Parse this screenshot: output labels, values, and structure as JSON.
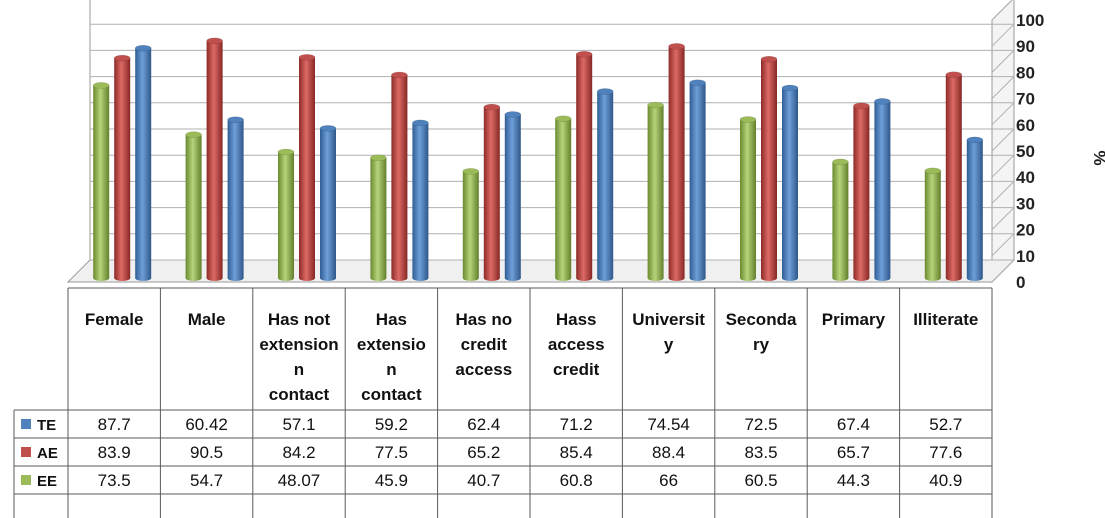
{
  "chart_data": {
    "type": "bar",
    "categories": [
      "Female",
      "Male",
      "Has not extension contact",
      "Has extension contact",
      "Has no credit access",
      "Hass access credit",
      "University",
      "Secondary",
      "Primary",
      "Illiterate"
    ],
    "category_lines": [
      [
        "Female"
      ],
      [
        "Male"
      ],
      [
        "Has not",
        "extension",
        "n",
        "contact"
      ],
      [
        "Has",
        "extensio",
        "n",
        "contact"
      ],
      [
        "Has no",
        "credit",
        "access"
      ],
      [
        "Hass",
        "access",
        "credit"
      ],
      [
        "Universit",
        "y"
      ],
      [
        "Seconda",
        "ry"
      ],
      [
        "Primary"
      ],
      [
        "Illiterate"
      ]
    ],
    "series": [
      {
        "name": "TE",
        "color": "#4F81BD",
        "values": [
          "87.7",
          "60.42",
          "57.1",
          "59.2",
          "62.4",
          "71.2",
          "74.54",
          "72.5",
          "67.4",
          "52.7"
        ]
      },
      {
        "name": "AE",
        "color": "#C0504D",
        "values": [
          "83.9",
          "90.5",
          "84.2",
          "77.5",
          "65.2",
          "85.4",
          "88.4",
          "83.5",
          "65.7",
          "77.6"
        ]
      },
      {
        "name": "EE",
        "color": "#9BBB59",
        "values": [
          "73.5",
          "54.7",
          "48.07",
          "45.9",
          "40.7",
          "60.8",
          "66",
          "60.5",
          "44.3",
          "40.9"
        ]
      }
    ],
    "bar_order": [
      "EE",
      "AE",
      "TE"
    ],
    "y_ticks": [
      "0",
      "10",
      "20",
      "30",
      "40",
      "50",
      "60",
      "70",
      "80",
      "90",
      "100"
    ],
    "ylim": [
      0,
      100
    ],
    "ylabel": "%",
    "xlabel": "",
    "title": "",
    "grid": true,
    "legend": "data-table-left",
    "style": "3d-clustered-column"
  }
}
